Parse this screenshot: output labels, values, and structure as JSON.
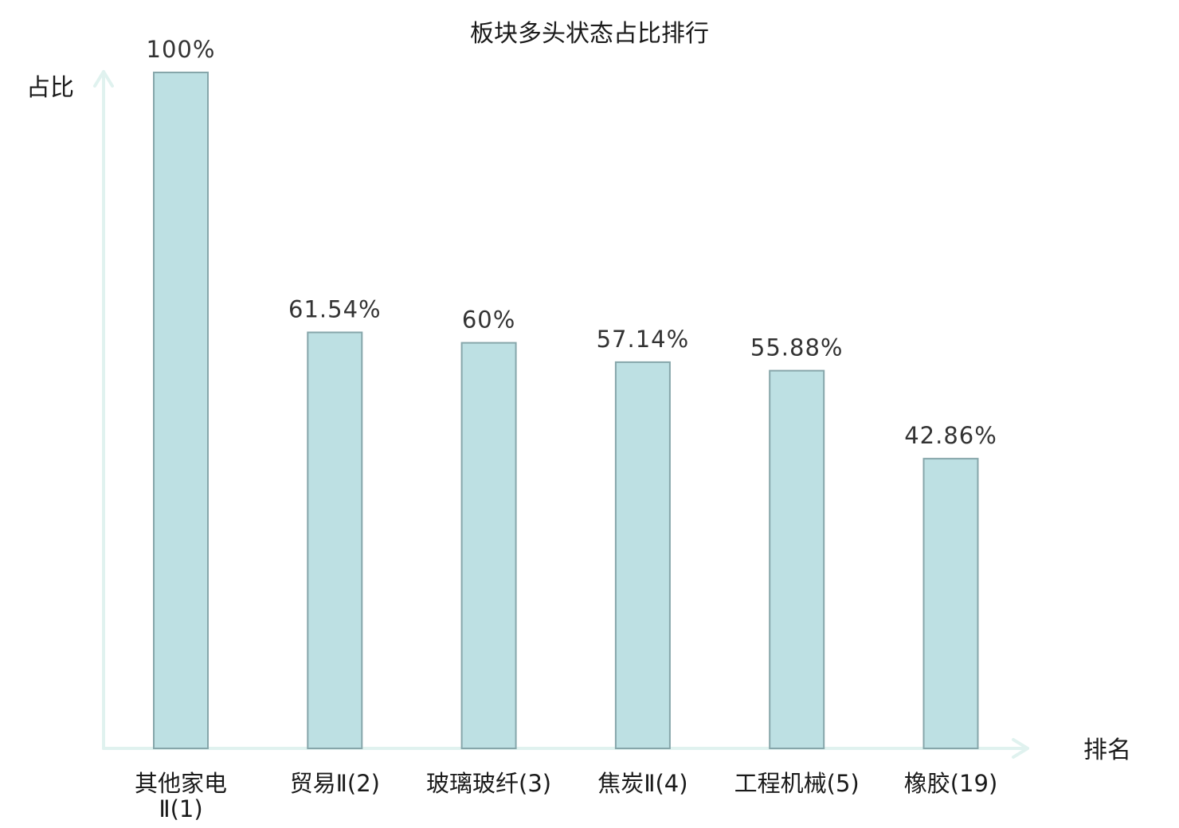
{
  "chart_data": {
    "type": "bar",
    "title": "板块多头状态占比排行",
    "xlabel": "排名",
    "ylabel": "占比",
    "categories": [
      "其他家电Ⅱ(1)",
      "贸易Ⅱ(2)",
      "玻璃玻纤(3)",
      "焦炭Ⅱ(4)",
      "工程机械(5)",
      "橡胶(19)"
    ],
    "category_lines": [
      [
        "其他家电",
        "Ⅱ(1)"
      ],
      [
        "贸易Ⅱ(2)"
      ],
      [
        "玻璃玻纤(3)"
      ],
      [
        "焦炭Ⅱ(4)"
      ],
      [
        "工程机械(5)"
      ],
      [
        "橡胶(19)"
      ]
    ],
    "highlight_category_index": 5,
    "values": [
      100,
      61.54,
      60,
      57.14,
      55.88,
      42.86
    ],
    "value_labels": [
      "100%",
      "61.54%",
      "60%",
      "57.14%",
      "55.88%",
      "42.86%"
    ],
    "ylim": [
      0,
      100
    ],
    "grid": false,
    "colors": {
      "bar_fill": "#bde0e3",
      "bar_stroke": "#86a6aa",
      "axis": "#e0f2ef",
      "highlight_text": "#e8151b",
      "text": "#1a1a1a"
    }
  }
}
